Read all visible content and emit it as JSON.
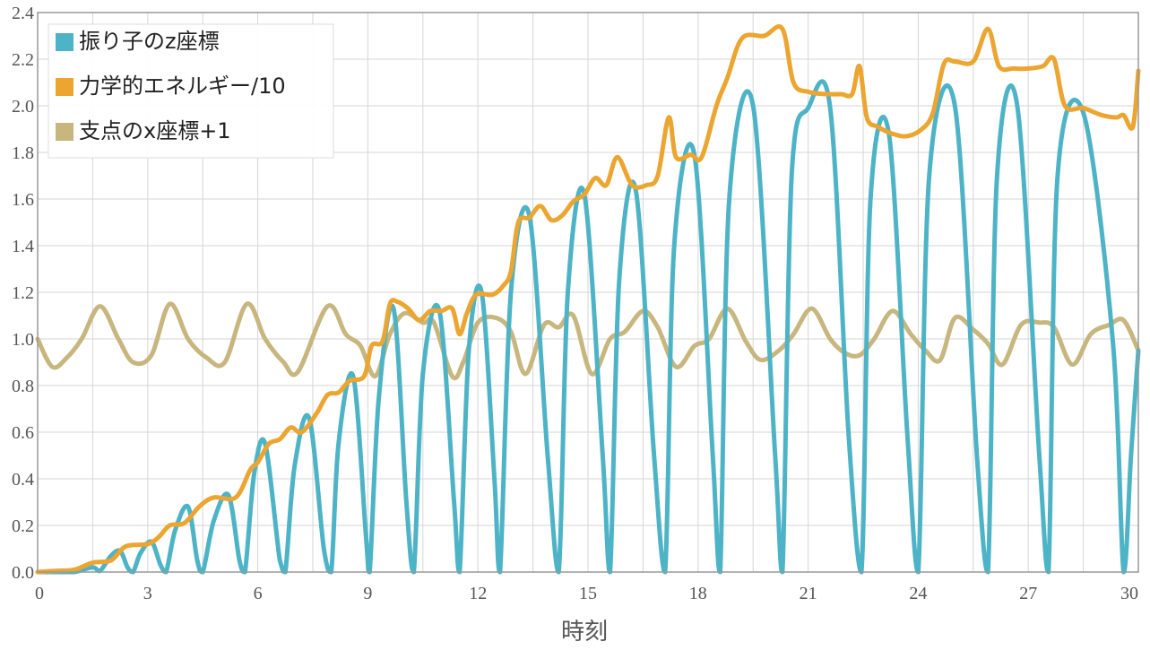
{
  "chart_data": {
    "type": "line",
    "xlabel": "時刻",
    "ylabel": "",
    "xlim": [
      0,
      30
    ],
    "ylim": [
      0,
      2.4
    ],
    "x_ticks": [
      "0",
      "3",
      "6",
      "9",
      "12",
      "15",
      "18",
      "21",
      "24",
      "27",
      "30"
    ],
    "y_ticks": [
      "0.0",
      "0.2",
      "0.4",
      "0.6",
      "0.8",
      "1.0",
      "1.2",
      "1.4",
      "1.6",
      "1.8",
      "2.0",
      "2.2",
      "2.4"
    ],
    "grid": true,
    "legend_position": "top-left",
    "series": [
      {
        "name": "振り子のz座標",
        "color": "#4db3c6",
        "points": [
          [
            0,
            0
          ],
          [
            0.5,
            0
          ],
          [
            1.0,
            0
          ],
          [
            1.5,
            0.02
          ],
          [
            1.7,
            0.005
          ],
          [
            2.0,
            0.07
          ],
          [
            2.25,
            0.09
          ],
          [
            2.45,
            0.02
          ],
          [
            2.6,
            0
          ],
          [
            2.8,
            0.08
          ],
          [
            3.1,
            0.13
          ],
          [
            3.35,
            0.03
          ],
          [
            3.5,
            0
          ],
          [
            3.75,
            0.18
          ],
          [
            4.1,
            0.28
          ],
          [
            4.35,
            0.05
          ],
          [
            4.5,
            0
          ],
          [
            4.8,
            0.22
          ],
          [
            5.2,
            0.33
          ],
          [
            5.5,
            0.05
          ],
          [
            5.65,
            0
          ],
          [
            5.9,
            0.42
          ],
          [
            6.2,
            0.55
          ],
          [
            6.6,
            0.05
          ],
          [
            6.75,
            0
          ],
          [
            7.0,
            0.45
          ],
          [
            7.4,
            0.66
          ],
          [
            7.8,
            0.1
          ],
          [
            8.0,
            0
          ],
          [
            8.2,
            0.55
          ],
          [
            8.6,
            0.84
          ],
          [
            8.95,
            0.15
          ],
          [
            9.05,
            0
          ],
          [
            9.3,
            0.75
          ],
          [
            9.7,
            1.13
          ],
          [
            10.05,
            0.3
          ],
          [
            10.25,
            0
          ],
          [
            10.5,
            0.85
          ],
          [
            10.95,
            1.12
          ],
          [
            11.35,
            0.3
          ],
          [
            11.5,
            0
          ],
          [
            11.75,
            0.95
          ],
          [
            12.1,
            1.2
          ],
          [
            12.45,
            0.4
          ],
          [
            12.6,
            0
          ],
          [
            12.9,
            1.2
          ],
          [
            13.4,
            1.53
          ],
          [
            13.9,
            0.5
          ],
          [
            14.2,
            0
          ],
          [
            14.45,
            1.2
          ],
          [
            14.9,
            1.62
          ],
          [
            15.4,
            0.5
          ],
          [
            15.6,
            0
          ],
          [
            15.85,
            1.25
          ],
          [
            16.3,
            1.64
          ],
          [
            16.8,
            0.5
          ],
          [
            17.1,
            0
          ],
          [
            17.35,
            1.4
          ],
          [
            17.9,
            1.79
          ],
          [
            18.4,
            0.5
          ],
          [
            18.6,
            0
          ],
          [
            18.85,
            1.6
          ],
          [
            19.5,
            2.0
          ],
          [
            20.1,
            0.5
          ],
          [
            20.3,
            0
          ],
          [
            20.55,
            1.7
          ],
          [
            21.0,
            1.99
          ],
          [
            21.6,
            1.99
          ],
          [
            22.1,
            0.6
          ],
          [
            22.45,
            0
          ],
          [
            22.7,
            1.6
          ],
          [
            23.2,
            1.88
          ],
          [
            23.7,
            0.6
          ],
          [
            24.0,
            0
          ],
          [
            24.3,
            1.7
          ],
          [
            25.0,
            2.0
          ],
          [
            25.6,
            0.5
          ],
          [
            25.9,
            0
          ],
          [
            26.15,
            1.7
          ],
          [
            26.7,
            2.0
          ],
          [
            27.3,
            0.5
          ],
          [
            27.55,
            0
          ],
          [
            27.8,
            1.7
          ],
          [
            28.5,
            1.97
          ],
          [
            29.3,
            1.0
          ],
          [
            29.6,
            0
          ],
          [
            29.8,
            0.5
          ],
          [
            30.0,
            0.95
          ]
        ]
      },
      {
        "name": "力学的エネルギー/10",
        "color": "#eba530",
        "points": [
          [
            0,
            0
          ],
          [
            0.5,
            0.005
          ],
          [
            1.0,
            0.01
          ],
          [
            1.5,
            0.04
          ],
          [
            2.0,
            0.05
          ],
          [
            2.4,
            0.11
          ],
          [
            3.0,
            0.12
          ],
          [
            3.3,
            0.15
          ],
          [
            3.6,
            0.2
          ],
          [
            4.0,
            0.21
          ],
          [
            4.4,
            0.28
          ],
          [
            4.8,
            0.32
          ],
          [
            5.4,
            0.32
          ],
          [
            5.8,
            0.44
          ],
          [
            6.0,
            0.47
          ],
          [
            6.3,
            0.55
          ],
          [
            6.6,
            0.57
          ],
          [
            6.9,
            0.62
          ],
          [
            7.2,
            0.6
          ],
          [
            7.6,
            0.68
          ],
          [
            7.9,
            0.76
          ],
          [
            8.2,
            0.77
          ],
          [
            8.5,
            0.82
          ],
          [
            8.9,
            0.84
          ],
          [
            9.1,
            0.97
          ],
          [
            9.4,
            0.99
          ],
          [
            9.6,
            1.15
          ],
          [
            9.8,
            1.16
          ],
          [
            10.1,
            1.13
          ],
          [
            10.4,
            1.08
          ],
          [
            10.7,
            1.12
          ],
          [
            11.0,
            1.12
          ],
          [
            11.3,
            1.13
          ],
          [
            11.5,
            1.02
          ],
          [
            11.7,
            1.11
          ],
          [
            11.95,
            1.19
          ],
          [
            12.4,
            1.19
          ],
          [
            12.7,
            1.23
          ],
          [
            12.9,
            1.29
          ],
          [
            13.1,
            1.5
          ],
          [
            13.4,
            1.52
          ],
          [
            13.7,
            1.57
          ],
          [
            14.0,
            1.51
          ],
          [
            14.3,
            1.53
          ],
          [
            14.6,
            1.59
          ],
          [
            14.9,
            1.62
          ],
          [
            15.2,
            1.69
          ],
          [
            15.5,
            1.66
          ],
          [
            15.8,
            1.78
          ],
          [
            16.2,
            1.66
          ],
          [
            16.6,
            1.66
          ],
          [
            16.9,
            1.7
          ],
          [
            17.2,
            1.95
          ],
          [
            17.4,
            1.78
          ],
          [
            17.8,
            1.79
          ],
          [
            18.1,
            1.78
          ],
          [
            18.5,
            2.0
          ],
          [
            18.8,
            2.12
          ],
          [
            19.2,
            2.29
          ],
          [
            19.8,
            2.3
          ],
          [
            20.3,
            2.33
          ],
          [
            20.6,
            2.1
          ],
          [
            21.0,
            2.06
          ],
          [
            21.5,
            2.05
          ],
          [
            21.9,
            2.05
          ],
          [
            22.2,
            2.05
          ],
          [
            22.4,
            2.17
          ],
          [
            22.6,
            1.95
          ],
          [
            22.9,
            1.91
          ],
          [
            23.3,
            1.88
          ],
          [
            23.7,
            1.87
          ],
          [
            24.1,
            1.9
          ],
          [
            24.4,
            1.97
          ],
          [
            24.7,
            2.18
          ],
          [
            25.0,
            2.19
          ],
          [
            25.5,
            2.19
          ],
          [
            25.9,
            2.33
          ],
          [
            26.2,
            2.17
          ],
          [
            26.6,
            2.16
          ],
          [
            27.0,
            2.16
          ],
          [
            27.4,
            2.17
          ],
          [
            27.7,
            2.2
          ],
          [
            28.0,
            2.0
          ],
          [
            28.5,
            1.99
          ],
          [
            29.0,
            1.96
          ],
          [
            29.4,
            1.95
          ],
          [
            29.6,
            1.96
          ],
          [
            29.85,
            1.91
          ],
          [
            30.0,
            2.15
          ]
        ]
      },
      {
        "name": "支点のx座標+1",
        "color": "#c8b67f",
        "points": [
          [
            0,
            1.0
          ],
          [
            0.4,
            0.88
          ],
          [
            0.8,
            0.92
          ],
          [
            1.2,
            1.0
          ],
          [
            1.7,
            1.14
          ],
          [
            2.2,
            1.0
          ],
          [
            2.6,
            0.9
          ],
          [
            3.1,
            0.93
          ],
          [
            3.6,
            1.15
          ],
          [
            4.1,
            1.0
          ],
          [
            4.6,
            0.92
          ],
          [
            5.1,
            0.9
          ],
          [
            5.7,
            1.15
          ],
          [
            6.2,
            1.0
          ],
          [
            6.7,
            0.9
          ],
          [
            7.1,
            0.86
          ],
          [
            7.9,
            1.14
          ],
          [
            8.4,
            1.02
          ],
          [
            8.8,
            0.97
          ],
          [
            9.2,
            0.84
          ],
          [
            9.6,
            1.02
          ],
          [
            10.0,
            1.11
          ],
          [
            10.5,
            1.07
          ],
          [
            10.8,
            1.07
          ],
          [
            11.3,
            0.84
          ],
          [
            11.6,
            0.9
          ],
          [
            12.0,
            1.07
          ],
          [
            12.5,
            1.09
          ],
          [
            12.9,
            1.03
          ],
          [
            13.3,
            0.85
          ],
          [
            13.8,
            1.06
          ],
          [
            14.2,
            1.05
          ],
          [
            14.6,
            1.1
          ],
          [
            15.1,
            0.85
          ],
          [
            15.6,
            1.0
          ],
          [
            16.0,
            1.03
          ],
          [
            16.5,
            1.12
          ],
          [
            16.9,
            1.05
          ],
          [
            17.4,
            0.88
          ],
          [
            17.9,
            0.97
          ],
          [
            18.3,
            1.0
          ],
          [
            18.8,
            1.13
          ],
          [
            19.3,
            0.99
          ],
          [
            19.7,
            0.91
          ],
          [
            20.2,
            0.95
          ],
          [
            20.6,
            1.02
          ],
          [
            21.1,
            1.13
          ],
          [
            21.6,
            1.0
          ],
          [
            22.0,
            0.94
          ],
          [
            22.4,
            0.93
          ],
          [
            22.8,
            1.0
          ],
          [
            23.3,
            1.12
          ],
          [
            23.8,
            1.02
          ],
          [
            24.2,
            0.95
          ],
          [
            24.6,
            0.91
          ],
          [
            25.0,
            1.09
          ],
          [
            25.5,
            1.04
          ],
          [
            25.9,
            0.98
          ],
          [
            26.3,
            0.89
          ],
          [
            26.8,
            1.06
          ],
          [
            27.3,
            1.07
          ],
          [
            27.7,
            1.05
          ],
          [
            28.2,
            0.89
          ],
          [
            28.7,
            1.02
          ],
          [
            29.2,
            1.06
          ],
          [
            29.6,
            1.08
          ],
          [
            30.0,
            0.95
          ]
        ]
      }
    ]
  }
}
